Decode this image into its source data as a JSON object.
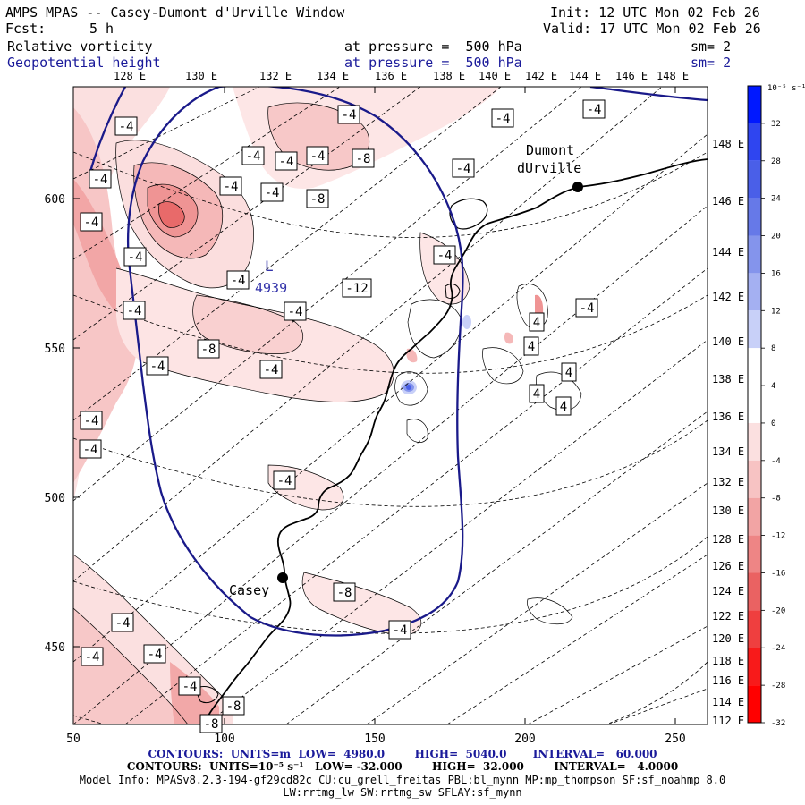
{
  "header": {
    "title": "AMPS MPAS -- Casey-Dumont d'Urville Window",
    "init": "Init: 12 UTC Mon 02 Feb 26",
    "fcst_label": "Fcst:",
    "fcst_value": "5 h",
    "valid": "Valid: 17 UTC Mon 02 Feb 26",
    "field1_name": "Relative vorticity",
    "field1_level": "at pressure =  500 hPa",
    "field1_sm": "sm= 2",
    "field2_name": "Geopotential height",
    "field2_level": "at pressure =  500 hPa",
    "field2_sm": "sm= 2"
  },
  "map": {
    "top_lon_labels": [
      "128 E",
      "130 E",
      "132 E",
      "134 E",
      "136 E",
      "138 E",
      "140 E",
      "142 E",
      "144 E",
      "146 E",
      "148 E"
    ],
    "right_lon_labels": [
      "148 E",
      "146 E",
      "144 E",
      "142 E",
      "140 E",
      "138 E",
      "136 E",
      "134 E",
      "132 E",
      "130 E",
      "128 E",
      "126 E",
      "124 E",
      "122 E",
      "120 E",
      "118 E",
      "116 E",
      "114 E",
      "112 E"
    ],
    "x_ticks": [
      "50",
      "100",
      "150",
      "200",
      "250"
    ],
    "y_ticks": [
      "600",
      "550",
      "500",
      "450"
    ],
    "stations": [
      {
        "name": "Dumont",
        "name2": "dUrville"
      },
      {
        "name": "Casey",
        "name2": ""
      }
    ],
    "low_center": {
      "letter": "L",
      "value": "4939"
    },
    "contour_labels": [
      "-4",
      "-4",
      "-4",
      "-4",
      "-4",
      "-4",
      "-4",
      "-8",
      "-4",
      "-4",
      "-4",
      "-4",
      "-8",
      "-4",
      "-4",
      "-4",
      "-4",
      "-12",
      "-4",
      "-4",
      "-8",
      "-4",
      "-4",
      "-4",
      "-4",
      "-4",
      "-8",
      "-4",
      "-4",
      "-4",
      "-4",
      "-4",
      "-8",
      "-8",
      "-4",
      "4",
      "4",
      "4",
      "4",
      "4"
    ]
  },
  "colorbar": {
    "unit": "10⁻⁵ s⁻¹",
    "labels": [
      "32",
      "28",
      "24",
      "20",
      "16",
      "12",
      "8",
      "4",
      "0",
      "-4",
      "-8",
      "-12",
      "-16",
      "-20",
      "-24",
      "-28",
      "-32"
    ],
    "colors": [
      "#0018ff",
      "#2f45f0",
      "#4a5fe8",
      "#6679e8",
      "#8494ec",
      "#a4b0f2",
      "#c8d0f8",
      "#ffffff",
      "#ffffff",
      "#fbe0e0",
      "#f7c3c3",
      "#f2a4a4",
      "#ee8585",
      "#ea6262",
      "#ef3f3f",
      "#f81a1a",
      "#ff0000"
    ]
  },
  "footer": {
    "line1": "CONTOURS:  UNITS=m  LOW=  4980.0        HIGH=  5040.0       INTERVAL=   60.000",
    "line2": "CONTOURS:  UNITS=10⁻⁵ s⁻¹   LOW= -32.000        HIGH=  32.000        INTERVAL=   4.0000",
    "line3": "Model Info: MPASv8.2.3-194-gf29cd82c CU:cu_grell_freitas PBL:bl_mynn MP:mp_thompson SF:sf_noahmp 8.0",
    "line4": "LW:rrtmg_lw SW:rrtmg_sw SFLAY:sf_mynn"
  }
}
